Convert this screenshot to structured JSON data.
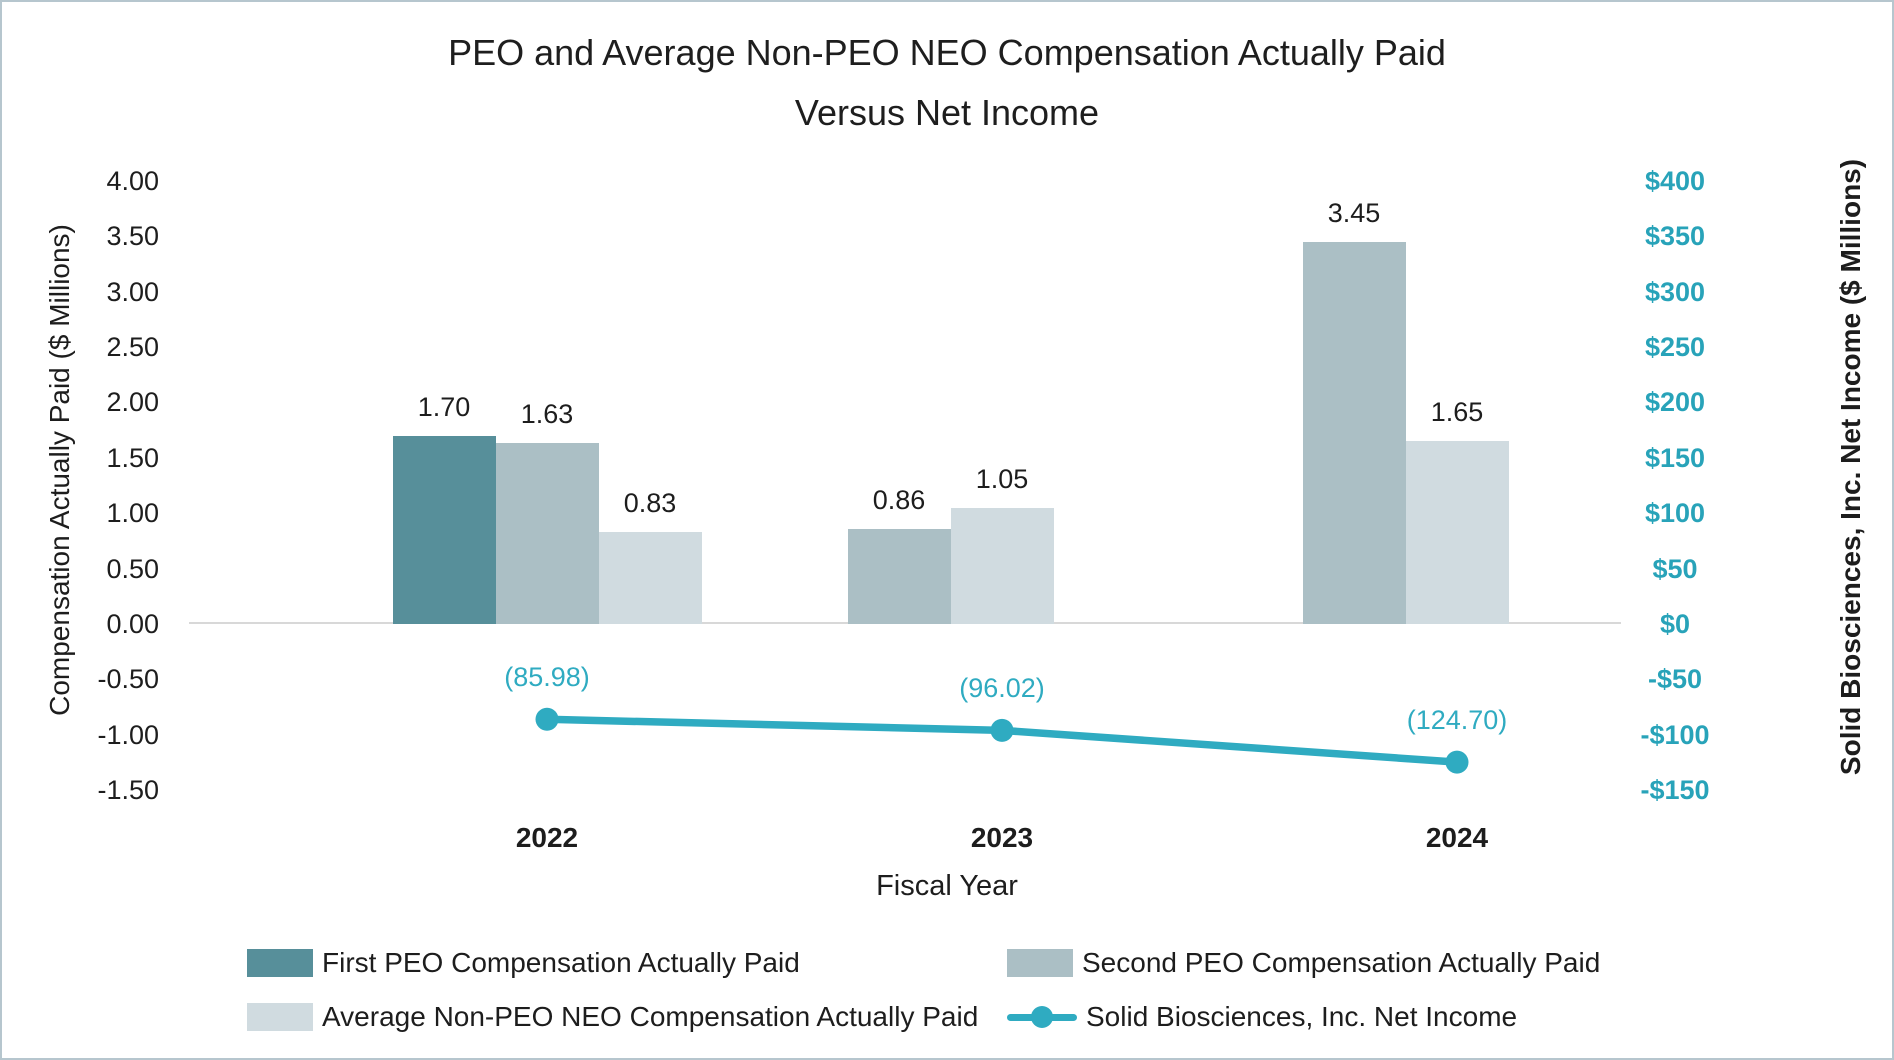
{
  "page": {
    "background": "#ffffff",
    "border_color": "#b6c6ce"
  },
  "chart_data": {
    "type": "combo-bar-line",
    "title_lines": [
      "PEO and Average Non-PEO NEO Compensation Actually Paid",
      "Versus Net Income"
    ],
    "categories": [
      "2022",
      "2023",
      "2024"
    ],
    "x_axis_label": "Fiscal Year",
    "grid": "off",
    "legend_position": "bottom",
    "bar_series": [
      {
        "name": "First PEO Compensation Actually Paid",
        "short_name": "first-peo",
        "color": "#578f9a",
        "values": [
          1.7,
          null,
          null
        ],
        "value_labels": [
          "1.70",
          null,
          null
        ]
      },
      {
        "name": "Second PEO Compensation Actually Paid",
        "short_name": "second-peo",
        "color": "#abbfc5",
        "values": [
          1.63,
          0.86,
          3.45
        ],
        "value_labels": [
          "1.63",
          "0.86",
          "3.45"
        ]
      },
      {
        "name": "Average Non-PEO NEO Compensation Actually Paid",
        "short_name": "avg-non-peo-neo",
        "color": "#d0dbe0",
        "values": [
          0.83,
          1.05,
          1.65
        ],
        "value_labels": [
          "0.83",
          "1.05",
          "1.65"
        ]
      }
    ],
    "line_series": {
      "name": "Solid Biosciences, Inc. Net Income",
      "short_name": "net-income",
      "color": "#2fabc1",
      "values": [
        -85.98,
        -96.02,
        -124.7
      ],
      "value_labels": [
        "(85.98)",
        "(96.02)",
        "(124.70)"
      ]
    },
    "left_axis": {
      "title": "Compensation Actually Paid ($ Millions)",
      "min": -1.5,
      "max": 4.0,
      "step": 0.5,
      "ticks": [
        "4.00",
        "3.50",
        "3.00",
        "2.50",
        "2.00",
        "1.50",
        "1.00",
        "0.50",
        "0.00",
        "-0.50",
        "-1.00",
        "-1.50"
      ],
      "text_color": "#1d1d1d"
    },
    "right_axis": {
      "title": "Solid Biosciences, Inc. Net Income ($ Millions)",
      "min": -150,
      "max": 400,
      "step": 50,
      "ticks": [
        "$400",
        "$350",
        "$300",
        "$250",
        "$200",
        "$150",
        "$100",
        "$50",
        "$0",
        "-$50",
        "-$100",
        "-$150"
      ],
      "text_color": "#28a3b9"
    },
    "baseline_color": "#d8d8d8",
    "legend": [
      {
        "label": "First PEO Compensation Actually Paid",
        "marker": "swatch",
        "color": "#578f9a"
      },
      {
        "label": "Second PEO Compensation Actually Paid",
        "marker": "swatch",
        "color": "#abbfc5"
      },
      {
        "label": "Average Non-PEO NEO Compensation Actually Paid",
        "marker": "swatch",
        "color": "#d0dbe0"
      },
      {
        "label": "Solid Biosciences, Inc. Net Income",
        "marker": "line",
        "color": "#2fabc1"
      }
    ]
  }
}
